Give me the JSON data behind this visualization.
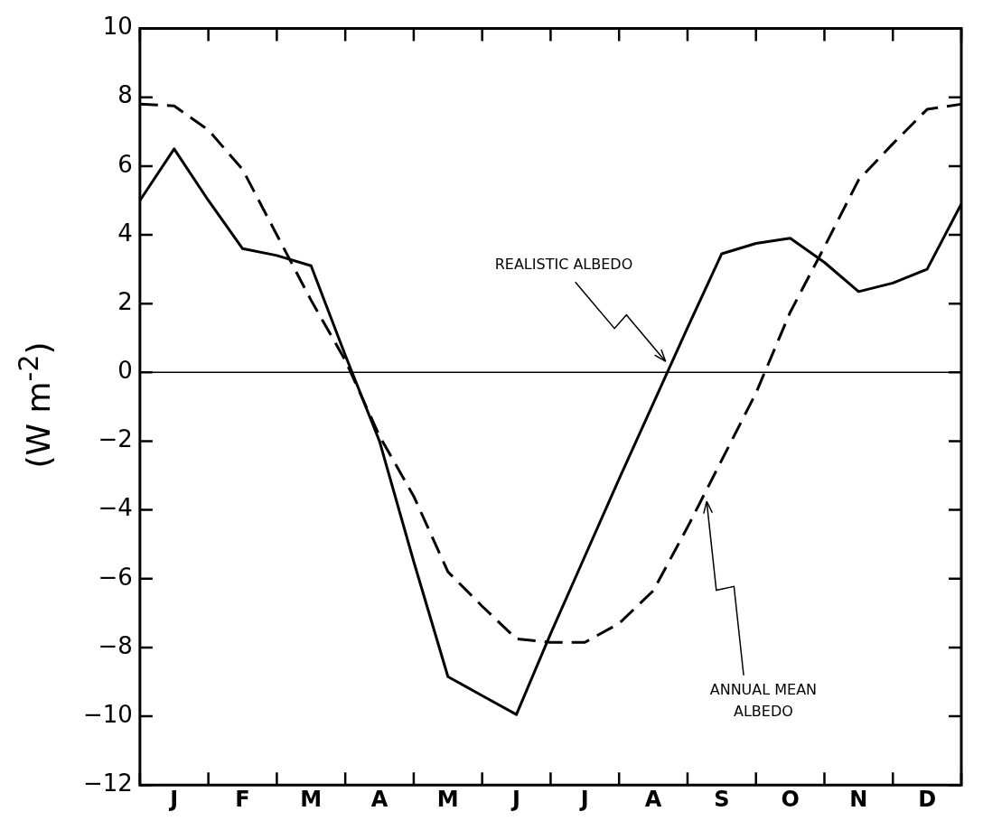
{
  "chart_data": {
    "type": "line",
    "ylabel": "(W m$^{-2}$)",
    "categories": [
      null,
      "J",
      null,
      "F",
      null,
      "M",
      null,
      "A",
      null,
      "M",
      null,
      "J",
      null,
      "J",
      null,
      "A",
      null,
      "S",
      null,
      "O",
      null,
      "N",
      null,
      "D",
      null
    ],
    "ylim": [
      -12,
      10
    ],
    "yticks": [
      -12,
      -10,
      -8,
      -6,
      -4,
      -2,
      0,
      2,
      4,
      6,
      8,
      10
    ],
    "series": [
      {
        "color": "#000000",
        "line_style": "solid",
        "values": [
          5.0,
          6.5,
          5.0,
          3.6,
          3.4,
          3.1,
          0.5,
          -2.0,
          -5.5,
          -8.85,
          -9.4,
          -9.95,
          -7.6,
          -5.35,
          -3.1,
          -0.9,
          1.3,
          3.45,
          3.75,
          3.9,
          3.2,
          2.35,
          2.6,
          3.0,
          4.9
        ]
      },
      {
        "color": "#000000",
        "line_style": "dashed",
        "values": [
          7.8,
          7.75,
          7.05,
          5.9,
          4.0,
          2.1,
          0.35,
          -1.85,
          -3.6,
          -5.8,
          -6.8,
          -7.75,
          -7.85,
          -7.85,
          -7.3,
          -6.35,
          -4.5,
          -2.55,
          -0.6,
          1.75,
          3.65,
          5.6,
          6.65,
          7.65,
          7.8
        ]
      }
    ],
    "ref_lines": [
      {
        "axis": "y",
        "value": 0,
        "color": "#000000"
      }
    ],
    "annotations": [
      "REALISTIC ALBEDO",
      "ANNUAL MEAN ALBEDO"
    ],
    "marker": "none",
    "grid": false,
    "legend": false
  }
}
